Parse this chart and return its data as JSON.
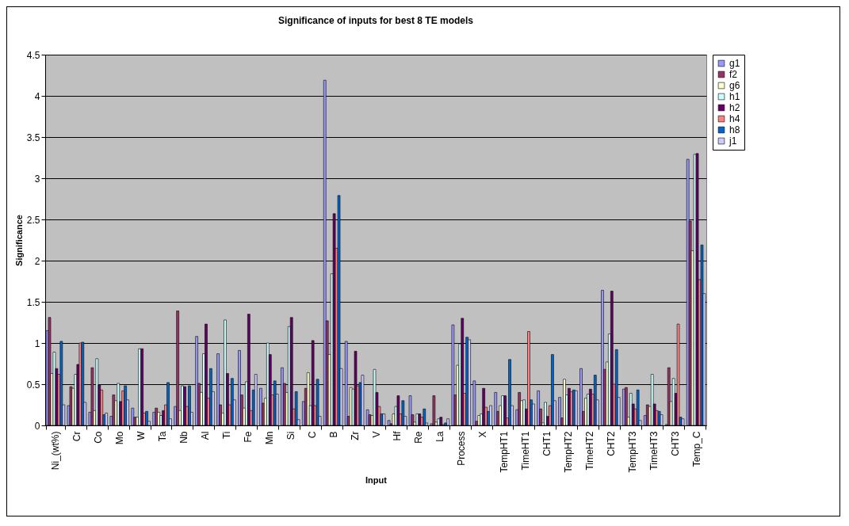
{
  "chart_data": {
    "type": "bar",
    "title": "Significance of inputs for best 8 TE models",
    "xlabel": "Input",
    "ylabel": "Significance",
    "categories": [
      "Ni_(wt%)",
      "Cr",
      "Co",
      "Mo",
      "W",
      "Ta",
      "Nb",
      "Al",
      "Ti",
      "Fe",
      "Mn",
      "Si",
      "C",
      "B",
      "Zr",
      "V",
      "Hf",
      "Re",
      "La",
      "Process",
      "X",
      "TempHT1",
      "TimeHT1",
      "CHT1",
      "TempHT2",
      "TimeHT2",
      "CHT2",
      "TempHT3",
      "TimeHT3",
      "CHT3",
      "Temp_C"
    ],
    "series": [
      {
        "name": "g1",
        "color": "#9999ff",
        "values": [
          1.15,
          0.24,
          0.16,
          0.11,
          0.21,
          0.16,
          0.23,
          1.08,
          0.87,
          0.91,
          0.45,
          0.7,
          0.29,
          4.19,
          1.02,
          0.19,
          0.06,
          0.36,
          0.02,
          1.22,
          0.54,
          0.4,
          0.19,
          0.42,
          0.34,
          0.69,
          1.64,
          0.44,
          0.12,
          0.01,
          3.23
        ]
      },
      {
        "name": "f2",
        "color": "#993366",
        "values": [
          1.31,
          0.47,
          0.7,
          0.37,
          0.1,
          0.21,
          1.39,
          0.51,
          0.25,
          0.37,
          0.27,
          0.51,
          0.45,
          1.27,
          0.11,
          0.13,
          0.02,
          0.13,
          0.36,
          0.37,
          0.05,
          0.17,
          0.4,
          0.2,
          0.09,
          0.17,
          0.68,
          0.46,
          0.25,
          0.7,
          2.48
        ]
      },
      {
        "name": "g6",
        "color": "#ffffcc",
        "values": [
          0.63,
          0.45,
          0.18,
          0.3,
          0.1,
          0.16,
          0.18,
          0.4,
          0.15,
          0.21,
          0.33,
          0.4,
          0.64,
          0.86,
          0.46,
          0.12,
          0.14,
          0.04,
          0.04,
          0.73,
          0.12,
          0.24,
          0.3,
          0.03,
          0.56,
          0.33,
          0.77,
          0.1,
          0.23,
          0.29,
          2.12
        ]
      },
      {
        "name": "h1",
        "color": "#ccffff",
        "values": [
          0.89,
          0.62,
          0.81,
          0.51,
          0.93,
          0.12,
          0.48,
          0.87,
          1.28,
          0.53,
          1.0,
          1.2,
          0.24,
          1.84,
          0.44,
          0.68,
          0.23,
          0.14,
          0.08,
          0.99,
          0.14,
          0.36,
          0.31,
          0.28,
          0.37,
          0.38,
          1.11,
          0.39,
          0.62,
          0.57,
          3.29
        ]
      },
      {
        "name": "h2",
        "color": "#660066",
        "values": [
          0.69,
          0.74,
          0.49,
          0.29,
          0.93,
          0.18,
          0.47,
          1.23,
          0.63,
          1.35,
          0.86,
          1.31,
          1.03,
          2.57,
          0.9,
          0.4,
          0.36,
          0.14,
          0.1,
          1.3,
          0.45,
          0.36,
          0.2,
          0.11,
          0.45,
          0.44,
          1.63,
          0.26,
          0.26,
          0.39,
          3.3
        ]
      },
      {
        "name": "h4",
        "color": "#ff8080",
        "values": [
          0.62,
          1.0,
          0.43,
          0.42,
          0.15,
          0.25,
          0.23,
          0.33,
          0.25,
          0.18,
          0.37,
          0.2,
          0.24,
          2.15,
          0.48,
          0.23,
          0.14,
          0.1,
          0.01,
          0.39,
          0.22,
          0.09,
          1.14,
          0.24,
          0.41,
          0.38,
          0.5,
          0.2,
          0.18,
          1.23,
          1.77
        ]
      },
      {
        "name": "h8",
        "color": "#0066cc",
        "values": [
          1.02,
          1.01,
          0.13,
          0.48,
          0.17,
          0.52,
          0.48,
          0.69,
          0.57,
          0.43,
          0.54,
          0.41,
          0.56,
          2.79,
          0.52,
          0.14,
          0.3,
          0.2,
          0.03,
          1.07,
          0.17,
          0.8,
          0.31,
          0.86,
          0.43,
          0.61,
          0.92,
          0.43,
          0.17,
          0.1,
          2.19
        ]
      },
      {
        "name": "j1",
        "color": "#ccccff",
        "values": [
          0.25,
          0.28,
          0.15,
          0.31,
          0.05,
          0.08,
          0.16,
          0.41,
          0.31,
          0.62,
          0.38,
          0.07,
          0.11,
          0.69,
          0.61,
          0.14,
          0.11,
          0.03,
          0.08,
          1.04,
          0.24,
          0.24,
          0.26,
          0.3,
          0.42,
          0.31,
          0.34,
          0.06,
          0.13,
          0.08,
          1.6
        ]
      }
    ],
    "ylim": [
      0,
      4.5
    ],
    "yticks": [
      0,
      0.5,
      1,
      1.5,
      2,
      2.5,
      3,
      3.5,
      4,
      4.5
    ],
    "grid": "y",
    "legend": "right"
  }
}
